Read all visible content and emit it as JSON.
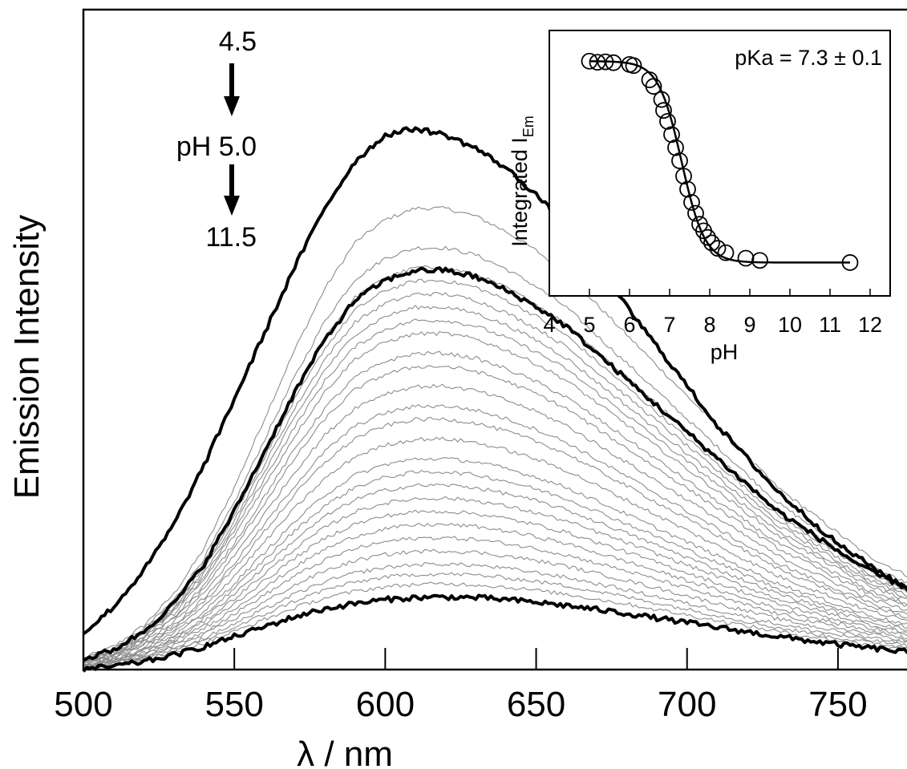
{
  "chart_data": [
    {
      "type": "line",
      "title": "",
      "xlabel": "λ / nm",
      "ylabel": "Emission Intensity",
      "xlim": [
        500,
        775
      ],
      "ylim": [
        0,
        1.0
      ],
      "x_ticks": [
        500,
        550,
        600,
        650,
        700,
        750
      ],
      "y_ticks": [],
      "grid": false,
      "legend": null,
      "annotations": {
        "ph_start": "4.5",
        "ph_mid": "pH 5.0",
        "ph_end": "11.5"
      },
      "series_style": {
        "highlight_color": "#000000",
        "family_color": "#8c8c8c"
      },
      "highlight_series": [
        {
          "peak_x": 605,
          "peak_y": 0.822,
          "x": [
            500,
            510,
            520,
            530,
            540,
            550,
            560,
            570,
            580,
            590,
            600,
            610,
            620,
            630,
            640,
            650,
            660,
            670,
            680,
            690,
            700,
            710,
            720,
            730,
            740,
            750,
            760,
            770,
            775
          ],
          "values": [
            0.055,
            0.095,
            0.15,
            0.22,
            0.31,
            0.41,
            0.51,
            0.61,
            0.7,
            0.77,
            0.81,
            0.82,
            0.81,
            0.79,
            0.76,
            0.72,
            0.67,
            0.61,
            0.55,
            0.49,
            0.43,
            0.37,
            0.32,
            0.27,
            0.23,
            0.19,
            0.16,
            0.13,
            0.12
          ]
        },
        {
          "peak_x": 617,
          "peak_y": 0.606,
          "x": [
            500,
            510,
            520,
            530,
            540,
            550,
            560,
            570,
            580,
            590,
            600,
            610,
            620,
            630,
            640,
            650,
            660,
            670,
            680,
            690,
            700,
            710,
            720,
            730,
            740,
            750,
            760,
            770,
            775
          ],
          "values": [
            0.015,
            0.03,
            0.058,
            0.1,
            0.16,
            0.24,
            0.33,
            0.42,
            0.5,
            0.56,
            0.59,
            0.605,
            0.605,
            0.595,
            0.575,
            0.55,
            0.52,
            0.48,
            0.44,
            0.4,
            0.36,
            0.32,
            0.28,
            0.24,
            0.21,
            0.18,
            0.15,
            0.13,
            0.12
          ]
        },
        {
          "peak_x": 622,
          "peak_y": 0.11,
          "x": [
            500,
            510,
            520,
            530,
            540,
            550,
            560,
            570,
            580,
            590,
            600,
            610,
            620,
            630,
            640,
            650,
            660,
            670,
            680,
            690,
            700,
            710,
            720,
            730,
            740,
            750,
            760,
            770,
            775
          ],
          "values": [
            0.0,
            0.005,
            0.012,
            0.022,
            0.035,
            0.05,
            0.065,
            0.08,
            0.092,
            0.1,
            0.106,
            0.109,
            0.11,
            0.109,
            0.106,
            0.102,
            0.097,
            0.091,
            0.085,
            0.078,
            0.071,
            0.064,
            0.057,
            0.05,
            0.044,
            0.038,
            0.033,
            0.028,
            0.026
          ]
        }
      ],
      "family_peaks": [
        0.7,
        0.64,
        0.61,
        0.59,
        0.57,
        0.55,
        0.53,
        0.51,
        0.48,
        0.46,
        0.43,
        0.4,
        0.38,
        0.35,
        0.32,
        0.3,
        0.28,
        0.26,
        0.24,
        0.22,
        0.2,
        0.18,
        0.16,
        0.145,
        0.13
      ]
    },
    {
      "type": "scatter",
      "title": "",
      "xlabel": "pH",
      "ylabel": "Integrated I",
      "ylabel_subscript": "Em",
      "xlim": [
        4,
        12.5
      ],
      "ylim": [
        0,
        1.0
      ],
      "x_ticks": [
        4,
        5,
        6,
        7,
        8,
        9,
        10,
        11,
        12
      ],
      "annotation": "pKa = 7.3 ± 0.1",
      "points": [
        {
          "x": 5.0,
          "y": 0.955
        },
        {
          "x": 5.2,
          "y": 0.95
        },
        {
          "x": 5.4,
          "y": 0.952
        },
        {
          "x": 5.6,
          "y": 0.948
        },
        {
          "x": 6.0,
          "y": 0.94
        },
        {
          "x": 6.1,
          "y": 0.935
        },
        {
          "x": 6.5,
          "y": 0.87
        },
        {
          "x": 6.6,
          "y": 0.84
        },
        {
          "x": 6.8,
          "y": 0.78
        },
        {
          "x": 6.85,
          "y": 0.73
        },
        {
          "x": 6.95,
          "y": 0.68
        },
        {
          "x": 7.05,
          "y": 0.62
        },
        {
          "x": 7.15,
          "y": 0.56
        },
        {
          "x": 7.25,
          "y": 0.5
        },
        {
          "x": 7.35,
          "y": 0.43
        },
        {
          "x": 7.45,
          "y": 0.37
        },
        {
          "x": 7.55,
          "y": 0.31
        },
        {
          "x": 7.65,
          "y": 0.26
        },
        {
          "x": 7.75,
          "y": 0.21
        },
        {
          "x": 7.85,
          "y": 0.18
        },
        {
          "x": 7.95,
          "y": 0.15
        },
        {
          "x": 8.05,
          "y": 0.125
        },
        {
          "x": 8.2,
          "y": 0.1
        },
        {
          "x": 8.4,
          "y": 0.08
        },
        {
          "x": 8.9,
          "y": 0.055
        },
        {
          "x": 9.25,
          "y": 0.045
        },
        {
          "x": 11.5,
          "y": 0.035
        }
      ],
      "fit": {
        "model": "sigmoid",
        "pKa": 7.3,
        "top": 0.955,
        "bottom": 0.035,
        "x_range": [
          5.0,
          11.5
        ]
      }
    }
  ]
}
